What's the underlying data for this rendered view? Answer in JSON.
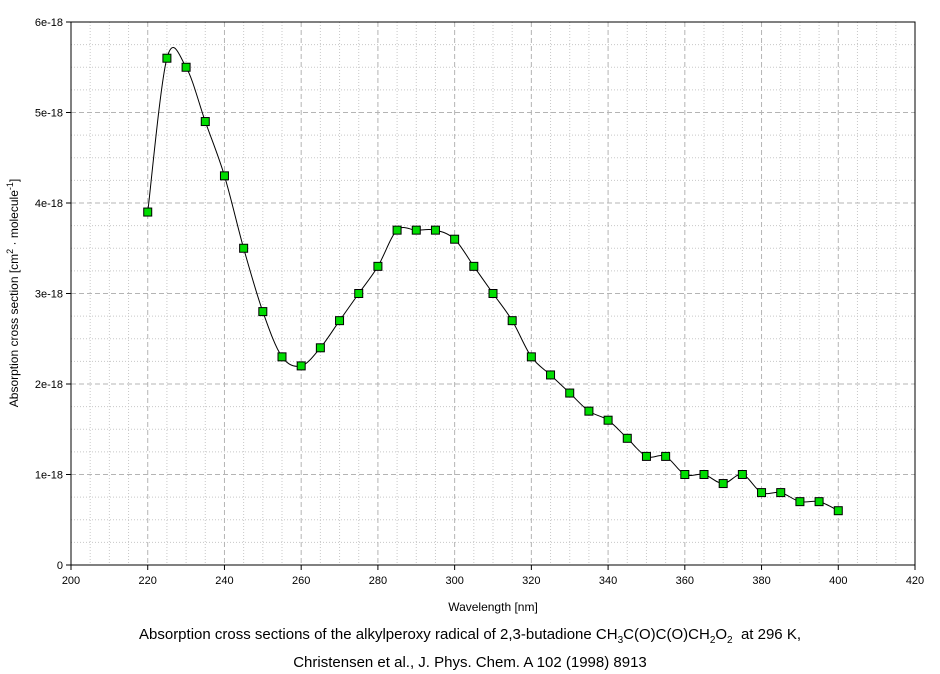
{
  "chart_data": {
    "type": "line",
    "xlabel": "Wavelength [nm]",
    "ylabel": {
      "text_1": "Absorption cross section [cm",
      "sup_1": "2",
      "text_2": " · molecule",
      "sup_2": "-1",
      "text_3": "]"
    },
    "xlim": [
      200,
      420
    ],
    "ylim": [
      0,
      6e-18
    ],
    "x_ticks": [
      200,
      220,
      240,
      260,
      280,
      300,
      320,
      340,
      360,
      380,
      400,
      420
    ],
    "y_ticks": [
      {
        "value": 0,
        "label": "0"
      },
      {
        "value": 1e-18,
        "label": "1e-18"
      },
      {
        "value": 2e-18,
        "label": "2e-18"
      },
      {
        "value": 3e-18,
        "label": "3e-18"
      },
      {
        "value": 4e-18,
        "label": "4e-18"
      },
      {
        "value": 5e-18,
        "label": "5e-18"
      },
      {
        "value": 6e-18,
        "label": "6e-18"
      }
    ],
    "grid": true,
    "marker_color": "#00dd00",
    "line_color": "#000000",
    "x": [
      220,
      225,
      230,
      235,
      240,
      245,
      250,
      255,
      260,
      265,
      270,
      275,
      280,
      285,
      290,
      295,
      300,
      305,
      310,
      315,
      320,
      325,
      330,
      335,
      340,
      345,
      350,
      355,
      360,
      365,
      370,
      375,
      380,
      385,
      390,
      395,
      400
    ],
    "y": [
      3.9e-18,
      5.6e-18,
      5.5e-18,
      4.9e-18,
      4.3e-18,
      3.5e-18,
      2.8e-18,
      2.3e-18,
      2.2e-18,
      2.4e-18,
      2.7e-18,
      3e-18,
      3.3e-18,
      3.7e-18,
      3.7e-18,
      3.7e-18,
      3.6e-18,
      3.3e-18,
      3e-18,
      2.7e-18,
      2.3e-18,
      2.1e-18,
      1.9e-18,
      1.7e-18,
      1.6e-18,
      1.4e-18,
      1.2e-18,
      1.2e-18,
      1e-18,
      1e-18,
      9e-19,
      1e-18,
      8e-19,
      8e-19,
      7e-19,
      7e-19,
      6e-19
    ]
  },
  "caption": {
    "line1_part1": "Absorption cross sections of the alkylperoxy radical of 2,3-butadione CH",
    "sub1": "3",
    "line1_part2": "C(O)C(O)CH",
    "sub2": "2",
    "line1_part3": "O",
    "sub3": "2",
    "line1_part4": "  at 296 K,",
    "line2": "Christensen et al., J. Phys. Chem. A 102 (1998) 8913"
  }
}
